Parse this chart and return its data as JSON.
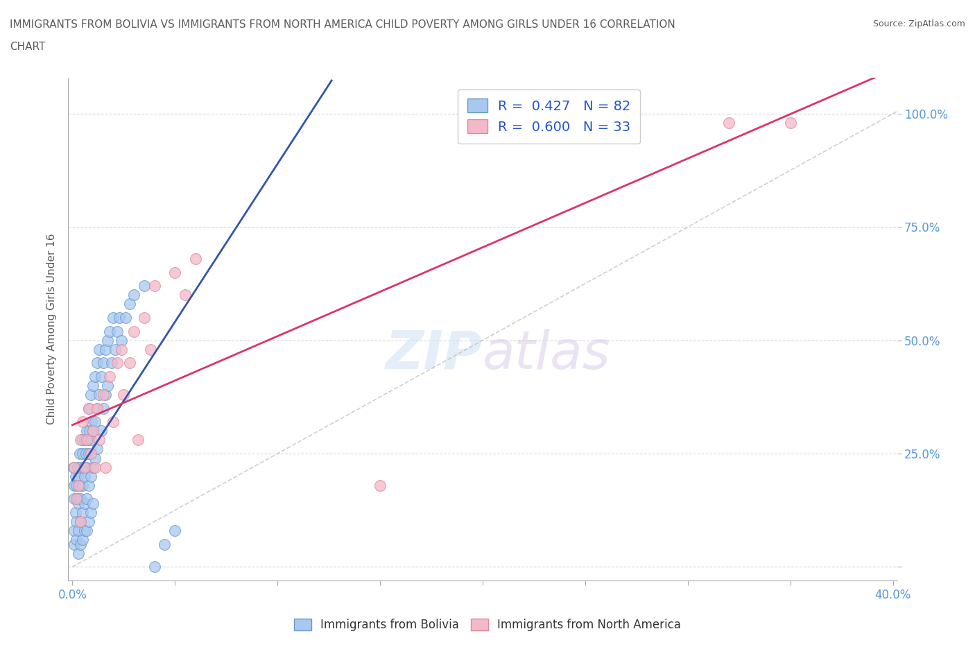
{
  "title_line1": "IMMIGRANTS FROM BOLIVIA VS IMMIGRANTS FROM NORTH AMERICA CHILD POVERTY AMONG GIRLS UNDER 16 CORRELATION",
  "title_line2": "CHART",
  "source": "Source: ZipAtlas.com",
  "ylabel": "Child Poverty Among Girls Under 16",
  "bolivia_color": "#a8c8f0",
  "bolivia_edge": "#6699cc",
  "north_america_color": "#f5b8c8",
  "north_america_edge": "#dd8899",
  "bolivia_R": 0.427,
  "bolivia_N": 82,
  "north_america_R": 0.6,
  "north_america_N": 33,
  "xmin": -0.002,
  "xmax": 0.402,
  "ymin": -0.03,
  "ymax": 1.08,
  "xticks": [
    0.0,
    0.05,
    0.1,
    0.15,
    0.2,
    0.25,
    0.3,
    0.35,
    0.4
  ],
  "yticks": [
    0.0,
    0.25,
    0.5,
    0.75,
    1.0
  ],
  "watermark_part1": "ZIP",
  "watermark_part2": "atlas",
  "title_color": "#5b5b5b",
  "axis_label_color": "#5b5b5b",
  "tick_label_color": "#5599dd",
  "grid_color": "#cccccc",
  "bolivia_line_color": "#3355aa",
  "north_america_line_color": "#dd3366",
  "diagonal_color": "#bbbbbb",
  "bolivia_points": [
    [
      0.0005,
      0.22
    ],
    [
      0.0008,
      0.18
    ],
    [
      0.001,
      0.15
    ],
    [
      0.001,
      0.08
    ],
    [
      0.001,
      0.05
    ],
    [
      0.0015,
      0.2
    ],
    [
      0.0015,
      0.12
    ],
    [
      0.002,
      0.18
    ],
    [
      0.002,
      0.1
    ],
    [
      0.002,
      0.06
    ],
    [
      0.0025,
      0.22
    ],
    [
      0.0025,
      0.15
    ],
    [
      0.003,
      0.2
    ],
    [
      0.003,
      0.14
    ],
    [
      0.003,
      0.08
    ],
    [
      0.003,
      0.03
    ],
    [
      0.0035,
      0.25
    ],
    [
      0.0035,
      0.18
    ],
    [
      0.004,
      0.22
    ],
    [
      0.004,
      0.15
    ],
    [
      0.004,
      0.1
    ],
    [
      0.004,
      0.05
    ],
    [
      0.0045,
      0.28
    ],
    [
      0.005,
      0.25
    ],
    [
      0.005,
      0.18
    ],
    [
      0.005,
      0.12
    ],
    [
      0.005,
      0.06
    ],
    [
      0.0055,
      0.22
    ],
    [
      0.006,
      0.28
    ],
    [
      0.006,
      0.2
    ],
    [
      0.006,
      0.14
    ],
    [
      0.006,
      0.08
    ],
    [
      0.0065,
      0.25
    ],
    [
      0.007,
      0.3
    ],
    [
      0.007,
      0.22
    ],
    [
      0.007,
      0.15
    ],
    [
      0.007,
      0.08
    ],
    [
      0.0075,
      0.28
    ],
    [
      0.008,
      0.35
    ],
    [
      0.008,
      0.25
    ],
    [
      0.008,
      0.18
    ],
    [
      0.008,
      0.1
    ],
    [
      0.0085,
      0.3
    ],
    [
      0.009,
      0.38
    ],
    [
      0.009,
      0.28
    ],
    [
      0.009,
      0.2
    ],
    [
      0.009,
      0.12
    ],
    [
      0.0095,
      0.32
    ],
    [
      0.01,
      0.4
    ],
    [
      0.01,
      0.3
    ],
    [
      0.01,
      0.22
    ],
    [
      0.01,
      0.14
    ],
    [
      0.011,
      0.42
    ],
    [
      0.011,
      0.32
    ],
    [
      0.011,
      0.24
    ],
    [
      0.012,
      0.45
    ],
    [
      0.012,
      0.35
    ],
    [
      0.012,
      0.26
    ],
    [
      0.013,
      0.48
    ],
    [
      0.013,
      0.38
    ],
    [
      0.014,
      0.42
    ],
    [
      0.014,
      0.3
    ],
    [
      0.015,
      0.45
    ],
    [
      0.015,
      0.35
    ],
    [
      0.016,
      0.48
    ],
    [
      0.016,
      0.38
    ],
    [
      0.017,
      0.5
    ],
    [
      0.017,
      0.4
    ],
    [
      0.018,
      0.52
    ],
    [
      0.019,
      0.45
    ],
    [
      0.02,
      0.55
    ],
    [
      0.021,
      0.48
    ],
    [
      0.022,
      0.52
    ],
    [
      0.023,
      0.55
    ],
    [
      0.024,
      0.5
    ],
    [
      0.026,
      0.55
    ],
    [
      0.028,
      0.58
    ],
    [
      0.03,
      0.6
    ],
    [
      0.035,
      0.62
    ],
    [
      0.04,
      0.0
    ],
    [
      0.045,
      0.05
    ],
    [
      0.05,
      0.08
    ]
  ],
  "north_america_points": [
    [
      0.001,
      0.22
    ],
    [
      0.002,
      0.15
    ],
    [
      0.003,
      0.18
    ],
    [
      0.004,
      0.1
    ],
    [
      0.004,
      0.28
    ],
    [
      0.005,
      0.32
    ],
    [
      0.006,
      0.22
    ],
    [
      0.007,
      0.28
    ],
    [
      0.008,
      0.35
    ],
    [
      0.009,
      0.25
    ],
    [
      0.01,
      0.3
    ],
    [
      0.011,
      0.22
    ],
    [
      0.012,
      0.35
    ],
    [
      0.013,
      0.28
    ],
    [
      0.015,
      0.38
    ],
    [
      0.016,
      0.22
    ],
    [
      0.018,
      0.42
    ],
    [
      0.02,
      0.32
    ],
    [
      0.022,
      0.45
    ],
    [
      0.024,
      0.48
    ],
    [
      0.025,
      0.38
    ],
    [
      0.028,
      0.45
    ],
    [
      0.03,
      0.52
    ],
    [
      0.032,
      0.28
    ],
    [
      0.035,
      0.55
    ],
    [
      0.038,
      0.48
    ],
    [
      0.04,
      0.62
    ],
    [
      0.05,
      0.65
    ],
    [
      0.055,
      0.6
    ],
    [
      0.06,
      0.68
    ],
    [
      0.15,
      0.18
    ],
    [
      0.32,
      0.98
    ],
    [
      0.35,
      0.98
    ]
  ]
}
